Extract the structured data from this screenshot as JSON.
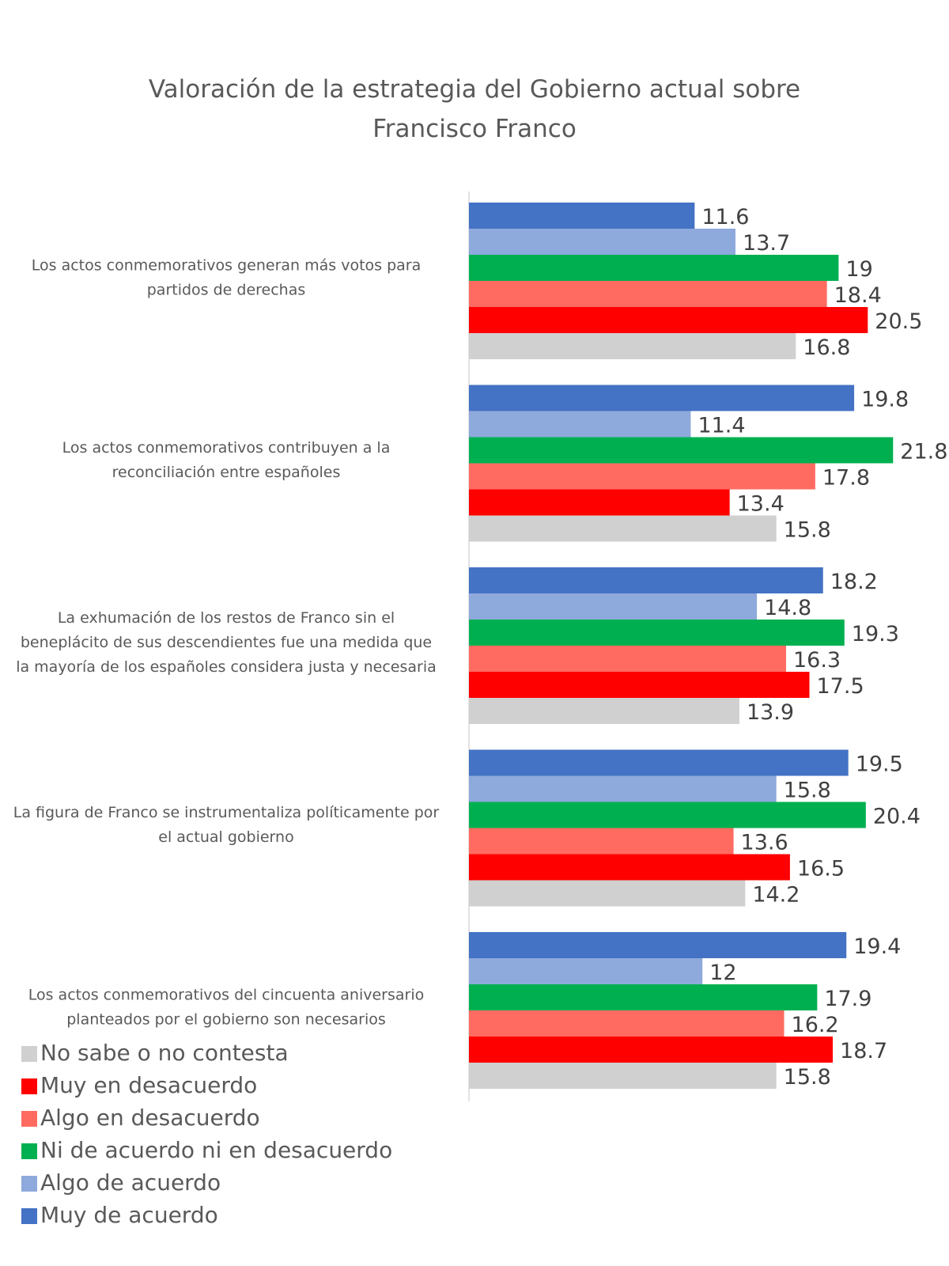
{
  "chart_data": {
    "type": "bar",
    "orientation": "horizontal",
    "title_lines": [
      "Valoración de la estrategia del Gobierno actual sobre",
      "Francisco Franco"
    ],
    "categories": [
      [
        "Los actos conmemorativos generan más votos para",
        "partidos de derechas"
      ],
      [
        "Los actos conmemorativos contribuyen a la",
        "reconciliación entre españoles"
      ],
      [
        "La exhumación de los restos de Franco sin el",
        "beneplácito de sus descendientes fue una medida que",
        "la mayoría de los españoles considera justa y necesaria"
      ],
      [
        "La figura de Franco se instrumentaliza políticamente por",
        "el actual gobierno"
      ],
      [
        "Los actos conmemorativos del cincuenta aniversario",
        "planteados por el gobierno son necesarios"
      ]
    ],
    "series": [
      {
        "name": "Muy de acuerdo",
        "color": "#4472C4",
        "values": [
          11.6,
          19.8,
          18.2,
          19.5,
          19.4
        ],
        "labels": [
          "11.6",
          "19.8",
          "18.2",
          "19.5",
          "19.4"
        ]
      },
      {
        "name": "Algo de acuerdo",
        "color": "#8EA9DB",
        "values": [
          13.7,
          11.4,
          14.8,
          15.8,
          12
        ],
        "labels": [
          "13.7",
          "11.4",
          "14.8",
          "15.8",
          "12"
        ]
      },
      {
        "name": "Ni de acuerdo ni en desacuerdo",
        "color": "#00B050",
        "values": [
          19,
          21.8,
          19.3,
          20.4,
          17.9
        ],
        "labels": [
          "19",
          "21.8",
          "19.3",
          "20.4",
          "17.9"
        ]
      },
      {
        "name": "Algo en desacuerdo",
        "color": "#FF6B61",
        "values": [
          18.4,
          17.8,
          16.3,
          13.6,
          16.2
        ],
        "labels": [
          "18.4",
          "17.8",
          "16.3",
          "13.6",
          "16.2"
        ]
      },
      {
        "name": "Muy en desacuerdo",
        "color": "#FF0000",
        "values": [
          20.5,
          13.4,
          17.5,
          16.5,
          18.7
        ],
        "labels": [
          "20.5",
          "13.4",
          "17.5",
          "16.5",
          "18.7"
        ]
      },
      {
        "name": "No sabe o no contesta",
        "color": "#D0D0D0",
        "values": [
          16.8,
          15.8,
          13.9,
          14.2,
          15.8
        ],
        "labels": [
          "16.8",
          "15.8",
          "13.9",
          "14.2",
          "15.8"
        ]
      }
    ],
    "legend_order": [
      "No sabe o no contesta",
      "Muy en desacuerdo",
      "Algo en desacuerdo",
      "Ni de acuerdo ni en desacuerdo",
      "Algo de acuerdo",
      "Muy de acuerdo"
    ],
    "legend_placement": "bottom-left",
    "xlim": [
      0,
      22
    ],
    "grid": false,
    "xaxis_visible": false
  }
}
